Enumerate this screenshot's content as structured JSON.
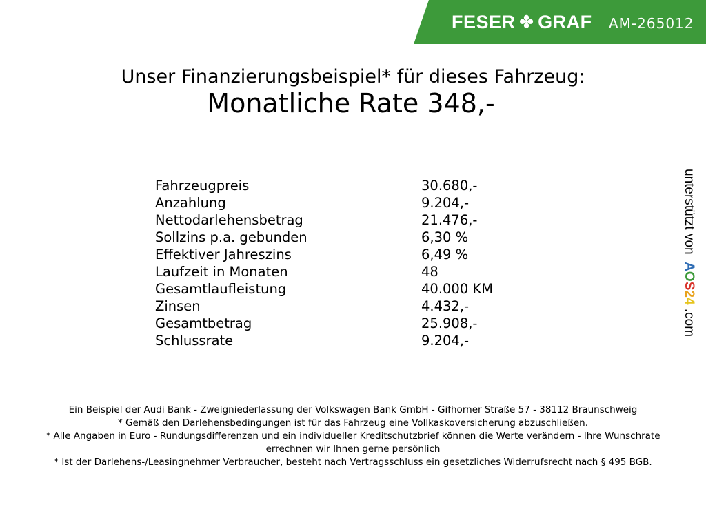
{
  "header": {
    "brand": "FESER",
    "brand2": "GRAF",
    "logo_icon": "clover-icon",
    "code": "AM-265012",
    "color": "#3d9a3a"
  },
  "title": "Unser Finanzierungsbeispiel* für dieses Fahrzeug:",
  "subtitle": "Monatliche Rate 348,-",
  "rows": [
    {
      "label": "Fahrzeugpreis",
      "value": "30.680,-"
    },
    {
      "label": "Anzahlung",
      "value": "9.204,-"
    },
    {
      "label": "Nettodarlehensbetrag",
      "value": "21.476,-"
    },
    {
      "label": "Sollzins p.a. gebunden",
      "value": "6,30 %"
    },
    {
      "label": "Effektiver Jahreszins",
      "value": "6,49 %"
    },
    {
      "label": "Laufzeit in Monaten",
      "value": "48"
    },
    {
      "label": "Gesamtlaufleistung",
      "value": "40.000 KM"
    },
    {
      "label": "Zinsen",
      "value": "4.432,-"
    },
    {
      "label": "Gesamtbetrag",
      "value": "25.908,-"
    },
    {
      "label": "Schlussrate",
      "value": "9.204,-"
    }
  ],
  "side": {
    "text": "unterstützt von",
    "logo": "AOS24",
    "suffix": ".com"
  },
  "footer": [
    "Ein Beispiel der Audi Bank - Zweigniederlassung der Volkswagen Bank GmbH - Gifhorner Straße 57 - 38112 Braunschweig",
    "* Gemäß den Darlehensbedingungen ist für das Fahrzeug eine Vollkaskoversicherung abzuschließen.",
    "* Alle Angaben in Euro - Rundungsdifferenzen und ein individueller Kreditschutzbrief können die Werte verändern - Ihre Wunschrate errechnen wir Ihnen gerne persönlich",
    "* Ist der Darlehens-/Leasingnehmer Verbraucher, besteht nach Vertragsschluss ein gesetzliches Widerrufsrecht nach § 495 BGB."
  ]
}
